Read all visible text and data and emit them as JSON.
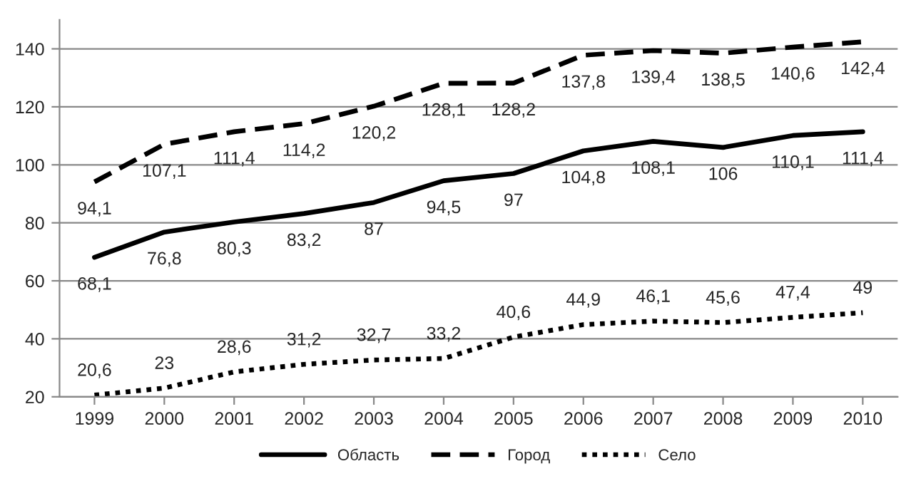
{
  "chart_data": {
    "type": "line",
    "categories": [
      "1999",
      "2000",
      "2001",
      "2002",
      "2003",
      "2004",
      "2005",
      "2006",
      "2007",
      "2008",
      "2009",
      "2010"
    ],
    "series": [
      {
        "name": "Область",
        "color": "#000000",
        "line_style": "solid",
        "values": [
          68.1,
          76.8,
          80.3,
          83.2,
          87,
          94.5,
          97,
          104.8,
          108.1,
          106,
          110.1,
          111.4
        ],
        "value_labels": [
          "68,1",
          "76,8",
          "80,3",
          "83,2",
          "87",
          "94,5",
          "97",
          "104,8",
          "108,1",
          "106",
          "110,1",
          "111,4"
        ]
      },
      {
        "name": "Город",
        "color": "#000000",
        "line_style": "dashed",
        "values": [
          94.1,
          107.1,
          111.4,
          114.2,
          120.2,
          128.1,
          128.2,
          137.8,
          139.4,
          138.5,
          140.6,
          142.4
        ],
        "value_labels": [
          "94,1",
          "107,1",
          "111,4",
          "114,2",
          "120,2",
          "128,1",
          "128,2",
          "137,8",
          "139,4",
          "138,5",
          "140,6",
          "142,4"
        ]
      },
      {
        "name": "Село",
        "color": "#000000",
        "line_style": "dotted",
        "values": [
          20.6,
          23,
          28.6,
          31.2,
          32.7,
          33.2,
          40.6,
          44.9,
          46.1,
          45.6,
          47.4,
          49
        ],
        "value_labels": [
          "20,6",
          "23",
          "28,6",
          "31,2",
          "32,7",
          "33,2",
          "40,6",
          "44,9",
          "46,1",
          "45,6",
          "47,4",
          "49"
        ]
      }
    ],
    "ylim": [
      20,
      150
    ],
    "yticks": [
      20,
      40,
      60,
      80,
      100,
      120,
      140
    ],
    "grid": "y",
    "legend": "bottom",
    "marker": "none"
  }
}
